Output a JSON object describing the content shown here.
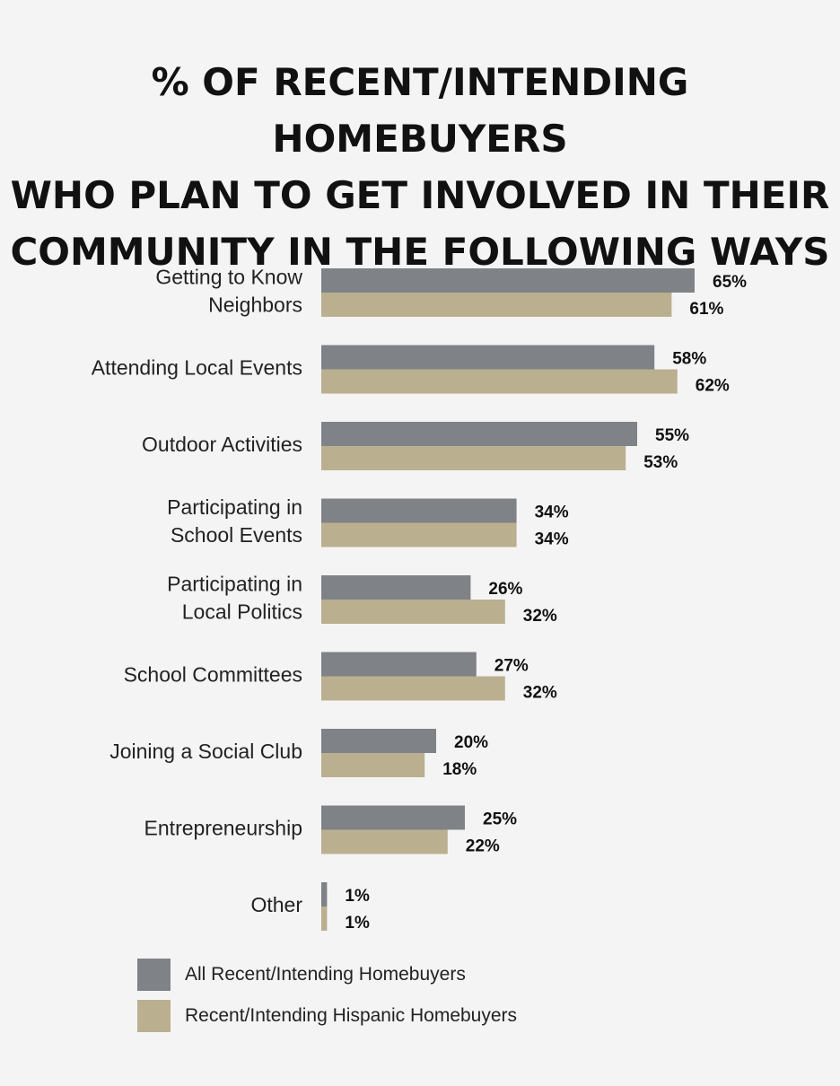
{
  "colors": {
    "all": "#7f8287",
    "hispanic": "#bab08f",
    "background": "#f4f4f4"
  },
  "chart_data": {
    "type": "bar",
    "orientation": "horizontal",
    "title": "% OF RECENT/INTENDING HOMEBUYERS WHO PLAN TO GET INVOLVED IN THEIR COMMUNITY IN THE FOLLOWING WAYS",
    "title_lines": [
      "% OF RECENT/INTENDING HOMEBUYERS",
      "WHO PLAN TO GET INVOLVED IN THEIR",
      "COMMUNITY IN THE FOLLOWING WAYS"
    ],
    "categories": [
      [
        "Getting to Know",
        "Neighbors"
      ],
      [
        "Attending Local Events"
      ],
      [
        "Outdoor Activities"
      ],
      [
        "Participating in",
        "School Events"
      ],
      [
        "Participating in",
        "Local Politics"
      ],
      [
        "School Committees"
      ],
      [
        "Joining a Social Club"
      ],
      [
        "Entrepreneurship"
      ],
      [
        "Other"
      ]
    ],
    "series": [
      {
        "name": "All Recent/Intending Homebuyers",
        "values": [
          65,
          58,
          55,
          34,
          26,
          27,
          20,
          25,
          1
        ],
        "labels": [
          "65%",
          "58%",
          "55%",
          "34%",
          "26%",
          "27%",
          "20%",
          "25%",
          "1%"
        ]
      },
      {
        "name": "Recent/Intending Hispanic Homebuyers",
        "values": [
          61,
          62,
          53,
          34,
          32,
          32,
          18,
          22,
          1
        ],
        "labels": [
          "61%",
          "62%",
          "53%",
          "34%",
          "32%",
          "32%",
          "18%",
          "22%",
          "1%"
        ]
      }
    ],
    "xlim": [
      0,
      65
    ],
    "grid": false,
    "legend": "bottom-left"
  }
}
